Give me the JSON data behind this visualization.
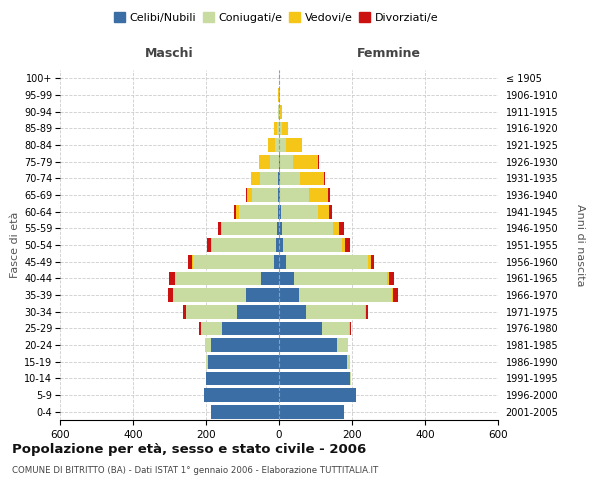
{
  "age_groups": [
    "0-4",
    "5-9",
    "10-14",
    "15-19",
    "20-24",
    "25-29",
    "30-34",
    "35-39",
    "40-44",
    "45-49",
    "50-54",
    "55-59",
    "60-64",
    "65-69",
    "70-74",
    "75-79",
    "80-84",
    "85-89",
    "90-94",
    "95-99",
    "100+"
  ],
  "birth_years": [
    "2001-2005",
    "1996-2000",
    "1991-1995",
    "1986-1990",
    "1981-1985",
    "1976-1980",
    "1971-1975",
    "1966-1970",
    "1961-1965",
    "1956-1960",
    "1951-1955",
    "1946-1950",
    "1941-1945",
    "1936-1940",
    "1931-1935",
    "1926-1930",
    "1921-1925",
    "1916-1920",
    "1911-1915",
    "1906-1910",
    "≤ 1905"
  ],
  "maschi": {
    "celibe": [
      185,
      205,
      200,
      195,
      185,
      155,
      115,
      90,
      50,
      15,
      8,
      6,
      4,
      3,
      2,
      1,
      0,
      0,
      0,
      0,
      0
    ],
    "coniugato": [
      0,
      0,
      1,
      5,
      18,
      60,
      140,
      200,
      235,
      220,
      175,
      150,
      105,
      70,
      50,
      25,
      12,
      5,
      2,
      1,
      0
    ],
    "vedovo": [
      0,
      0,
      0,
      0,
      0,
      0,
      0,
      1,
      1,
      2,
      3,
      4,
      8,
      15,
      25,
      30,
      18,
      8,
      2,
      1,
      0
    ],
    "divorziato": [
      0,
      0,
      0,
      0,
      1,
      3,
      7,
      12,
      15,
      13,
      10,
      8,
      5,
      2,
      1,
      0,
      0,
      0,
      0,
      0,
      0
    ]
  },
  "femmine": {
    "nubile": [
      178,
      210,
      195,
      185,
      160,
      118,
      75,
      55,
      40,
      18,
      10,
      7,
      6,
      4,
      2,
      2,
      0,
      0,
      0,
      0,
      0
    ],
    "coniugata": [
      0,
      0,
      2,
      10,
      28,
      75,
      160,
      255,
      255,
      225,
      162,
      140,
      100,
      78,
      55,
      35,
      18,
      8,
      2,
      1,
      0
    ],
    "vedova": [
      0,
      0,
      0,
      0,
      0,
      1,
      2,
      3,
      5,
      8,
      10,
      18,
      32,
      52,
      65,
      70,
      45,
      18,
      5,
      2,
      1
    ],
    "divorziata": [
      0,
      0,
      0,
      0,
      1,
      3,
      8,
      12,
      15,
      10,
      12,
      12,
      8,
      5,
      3,
      2,
      1,
      0,
      0,
      0,
      0
    ]
  },
  "colors": {
    "celibe": "#3a6ea5",
    "coniugato": "#c8dba0",
    "vedovo": "#f5c518",
    "divorziato": "#cc1111"
  },
  "legend_labels": [
    "Celibi/Nubili",
    "Coniugati/e",
    "Vedovi/e",
    "Divorziati/e"
  ],
  "title": "Popolazione per età, sesso e stato civile - 2006",
  "subtitle": "COMUNE DI BITRITTO (BA) - Dati ISTAT 1° gennaio 2006 - Elaborazione TUTTITALIA.IT",
  "xlabel_left": "Maschi",
  "xlabel_right": "Femmine",
  "ylabel_left": "Fasce di età",
  "ylabel_right": "Anni di nascita",
  "xlim": 600,
  "background_color": "#ffffff",
  "grid_color": "#cccccc"
}
